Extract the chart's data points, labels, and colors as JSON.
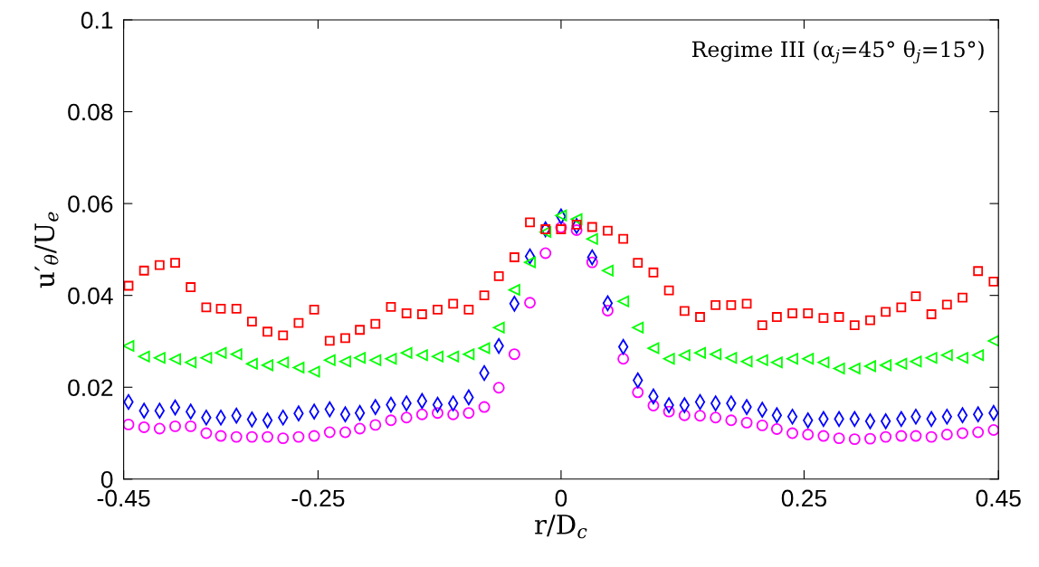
{
  "chart_data": {
    "type": "scatter",
    "xlabel": "r/D$_{c}$",
    "ylabel": "u′$_{θ}$/U$_{e}$",
    "annotations": [
      "Regime III (α$_{j}$=45° θ$_{j}$=15°)"
    ],
    "x": [
      -0.445,
      -0.429,
      -0.413,
      -0.397,
      -0.381,
      -0.365,
      -0.35,
      -0.334,
      -0.318,
      -0.302,
      -0.286,
      -0.27,
      -0.254,
      -0.238,
      -0.222,
      -0.207,
      -0.191,
      -0.175,
      -0.159,
      -0.143,
      -0.127,
      -0.111,
      -0.095,
      -0.079,
      -0.064,
      -0.048,
      -0.032,
      -0.016,
      0,
      0.016,
      0.032,
      0.048,
      0.064,
      0.079,
      0.095,
      0.111,
      0.127,
      0.143,
      0.159,
      0.175,
      0.191,
      0.207,
      0.222,
      0.238,
      0.254,
      0.27,
      0.286,
      0.302,
      0.318,
      0.334,
      0.35,
      0.365,
      0.381,
      0.397,
      0.413,
      0.429,
      0.445
    ],
    "xlim": [
      -0.45,
      0.45
    ],
    "xticks": [
      -0.45,
      -0.25,
      0,
      0.25,
      0.45
    ],
    "ylim": [
      0,
      0.1
    ],
    "yticks": [
      0,
      0.02,
      0.04,
      0.06,
      0.08,
      0.1
    ],
    "grid": false,
    "legend": false,
    "series": [
      {
        "color": "#ff0000",
        "marker": "square",
        "values": [
          0.0421,
          0.0454,
          0.0466,
          0.0471,
          0.0418,
          0.0374,
          0.0371,
          0.0371,
          0.0343,
          0.0321,
          0.0313,
          0.034,
          0.0369,
          0.0301,
          0.0307,
          0.0325,
          0.0338,
          0.0375,
          0.0361,
          0.0359,
          0.0369,
          0.0382,
          0.0369,
          0.04,
          0.0442,
          0.0483,
          0.0559,
          0.0544,
          0.0544,
          0.0554,
          0.0549,
          0.0541,
          0.0523,
          0.0471,
          0.045,
          0.0411,
          0.0366,
          0.0353,
          0.0379,
          0.0379,
          0.0382,
          0.0335,
          0.0353,
          0.0361,
          0.0361,
          0.0351,
          0.0353,
          0.0335,
          0.0346,
          0.0364,
          0.0374,
          0.0398,
          0.0359,
          0.038,
          0.0395,
          0.0453,
          0.043
        ]
      },
      {
        "color": "#00ff00",
        "marker": "triangle",
        "values": [
          0.029,
          0.0267,
          0.0264,
          0.0261,
          0.0254,
          0.0264,
          0.0275,
          0.0272,
          0.0251,
          0.0248,
          0.0254,
          0.0243,
          0.0234,
          0.0259,
          0.0256,
          0.0264,
          0.0259,
          0.0262,
          0.0275,
          0.027,
          0.0267,
          0.0267,
          0.0272,
          0.0285,
          0.033,
          0.0412,
          0.0472,
          0.0538,
          0.0574,
          0.0566,
          0.0523,
          0.0454,
          0.0387,
          0.033,
          0.0285,
          0.0262,
          0.027,
          0.0275,
          0.0272,
          0.0264,
          0.0256,
          0.0259,
          0.0254,
          0.0262,
          0.0262,
          0.0254,
          0.0241,
          0.0241,
          0.0246,
          0.0248,
          0.0251,
          0.0256,
          0.0264,
          0.027,
          0.0264,
          0.027,
          0.0301
        ]
      },
      {
        "color": "#0000ff",
        "marker": "diamond",
        "values": [
          0.0168,
          0.0149,
          0.0149,
          0.0156,
          0.0147,
          0.0134,
          0.0134,
          0.0138,
          0.013,
          0.0128,
          0.0134,
          0.0143,
          0.0147,
          0.0152,
          0.0141,
          0.0144,
          0.0157,
          0.0162,
          0.0165,
          0.017,
          0.0162,
          0.0165,
          0.0178,
          0.0231,
          0.029,
          0.0382,
          0.0485,
          0.0544,
          0.0572,
          0.0551,
          0.0483,
          0.0383,
          0.0288,
          0.0215,
          0.018,
          0.0161,
          0.0161,
          0.0168,
          0.0165,
          0.0165,
          0.0157,
          0.0151,
          0.0139,
          0.0136,
          0.0128,
          0.0131,
          0.0131,
          0.0131,
          0.0126,
          0.0126,
          0.0131,
          0.0136,
          0.0131,
          0.0136,
          0.0139,
          0.0141,
          0.0144
        ]
      },
      {
        "color": "#ff00ff",
        "marker": "circle",
        "values": [
          0.0119,
          0.0113,
          0.011,
          0.0115,
          0.0115,
          0.01,
          0.0094,
          0.0092,
          0.0092,
          0.0092,
          0.0089,
          0.0092,
          0.0094,
          0.0102,
          0.0102,
          0.011,
          0.0118,
          0.0128,
          0.0134,
          0.0141,
          0.0144,
          0.0141,
          0.0144,
          0.0157,
          0.0199,
          0.0272,
          0.0384,
          0.0492,
          0.0548,
          0.0542,
          0.0472,
          0.0367,
          0.0262,
          0.0189,
          0.016,
          0.0147,
          0.0139,
          0.0138,
          0.0134,
          0.0128,
          0.0123,
          0.0117,
          0.0109,
          0.01,
          0.0097,
          0.0094,
          0.0089,
          0.0087,
          0.0088,
          0.0092,
          0.0094,
          0.0094,
          0.0092,
          0.0097,
          0.01,
          0.0102,
          0.0107
        ]
      }
    ]
  }
}
